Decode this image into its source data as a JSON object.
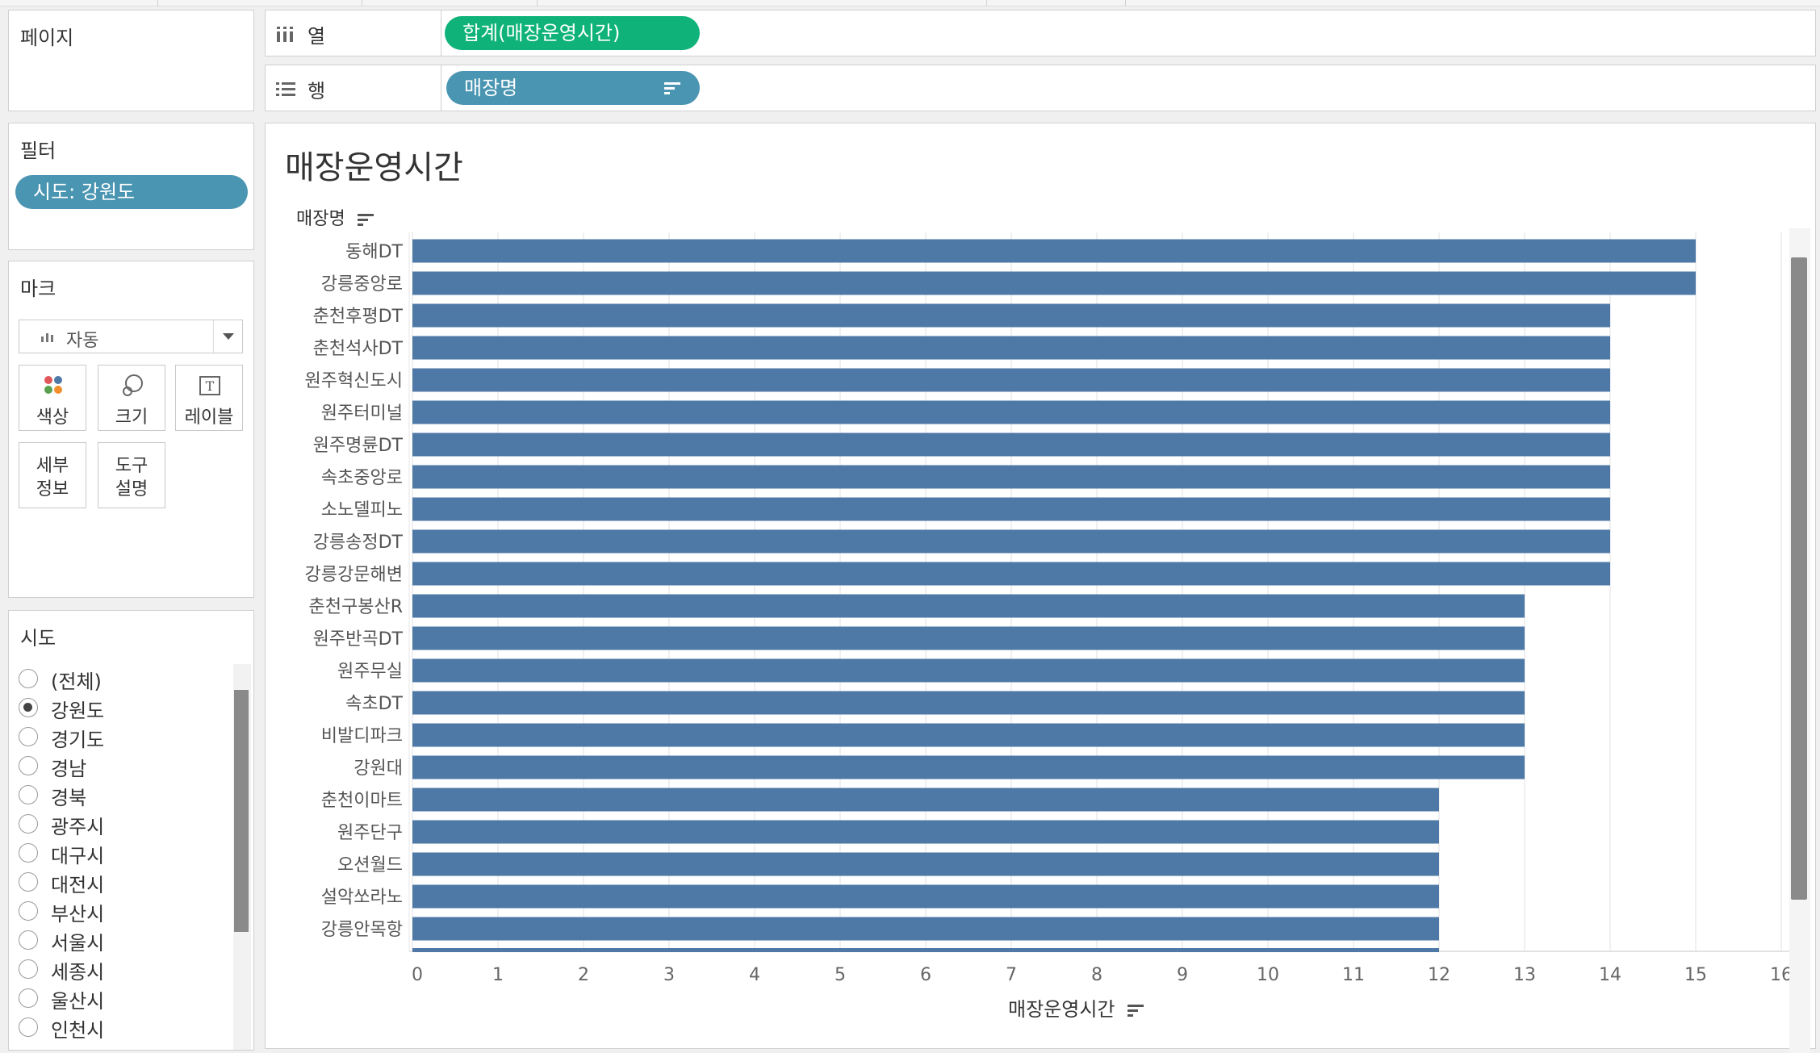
{
  "shelves": {
    "columns": {
      "label": "열",
      "pill": "합계(매장운영시간)"
    },
    "rows": {
      "label": "행",
      "pill": "매장명"
    }
  },
  "left": {
    "pages_title": "페이지",
    "filters_title": "필터",
    "filter_pill": "시도: 강원도",
    "marks_title": "마크",
    "mark_type": "자동",
    "mark_buttons": {
      "color": "색상",
      "size": "크기",
      "label": "레이블",
      "detail": "세부\n정보",
      "tooltip": "도구\n설명"
    },
    "sido_title": "시도",
    "sido_options": [
      {
        "label": "(전체)",
        "selected": false
      },
      {
        "label": "강원도",
        "selected": true
      },
      {
        "label": "경기도",
        "selected": false
      },
      {
        "label": "경남",
        "selected": false
      },
      {
        "label": "경북",
        "selected": false
      },
      {
        "label": "광주시",
        "selected": false
      },
      {
        "label": "대구시",
        "selected": false
      },
      {
        "label": "대전시",
        "selected": false
      },
      {
        "label": "부산시",
        "selected": false
      },
      {
        "label": "서울시",
        "selected": false
      },
      {
        "label": "세종시",
        "selected": false
      },
      {
        "label": "울산시",
        "selected": false
      },
      {
        "label": "인천시",
        "selected": false
      }
    ]
  },
  "colors": {
    "bar": "#4e79a7",
    "pill_blue": "#4a96b2",
    "pill_green": "#0fb37a"
  },
  "chart_data": {
    "type": "bar",
    "orientation": "horizontal",
    "title": "매장운영시간",
    "ylabel": "매장명",
    "xlabel": "매장운영시간",
    "xlim": [
      0,
      16
    ],
    "xticks": [
      0,
      1,
      2,
      3,
      4,
      5,
      6,
      7,
      8,
      9,
      10,
      11,
      12,
      13,
      14,
      15,
      16
    ],
    "grid": true,
    "categories": [
      "동해DT",
      "강릉중앙로",
      "춘천후평DT",
      "춘천석사DT",
      "원주혁신도시",
      "원주터미널",
      "원주명륜DT",
      "속초중앙로",
      "소노델피노",
      "강릉송정DT",
      "강릉강문해변",
      "춘천구봉산R",
      "원주반곡DT",
      "원주무실",
      "속초DT",
      "비발디파크",
      "강원대",
      "춘천이마트",
      "원주단구",
      "오션월드",
      "설악쏘라노",
      "강릉안목항"
    ],
    "values": [
      15,
      15,
      14,
      14,
      14,
      14,
      14,
      14,
      14,
      14,
      14,
      13,
      13,
      13,
      13,
      13,
      13,
      12,
      12,
      12,
      12,
      12
    ]
  }
}
